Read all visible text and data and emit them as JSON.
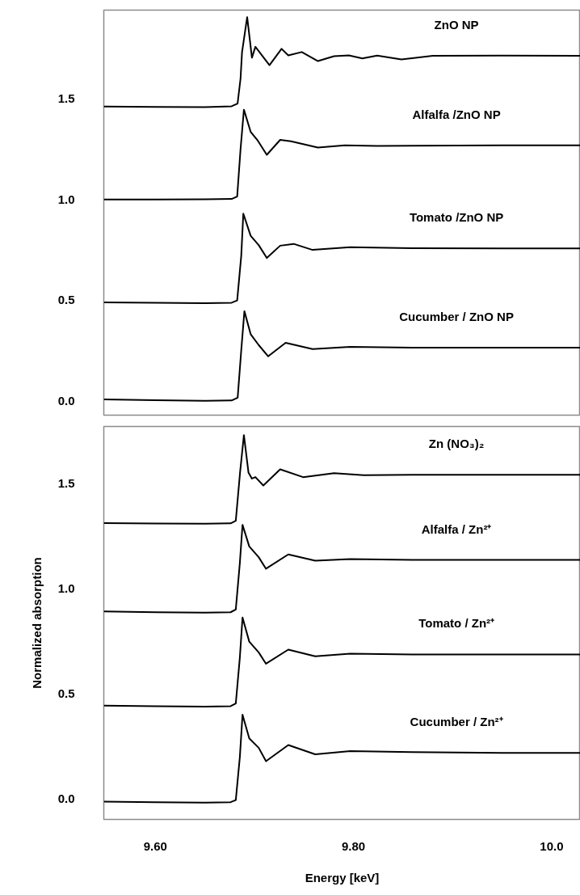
{
  "chart_data": [
    {
      "type": "line",
      "xlim": [
        9.548,
        10.029
      ],
      "ylim": [
        -0.07,
        1.94
      ],
      "yticks": [
        {
          "value": 0,
          "label": "0.0"
        },
        {
          "value": 0.5,
          "label": "0.5"
        },
        {
          "value": 1,
          "label": "1.0"
        },
        {
          "value": 1.5,
          "label": "1.5"
        }
      ],
      "tick_labels": "y",
      "grid": false,
      "series": [
        {
          "name": "ZnO NP",
          "color": "#000000",
          "x": [
            9.548,
            9.6,
            9.65,
            9.677,
            9.683,
            9.686,
            9.6875,
            9.6927,
            9.6975,
            9.701,
            9.7152,
            9.7274,
            9.7342,
            9.7478,
            9.7641,
            9.7804,
            9.7953,
            9.8089,
            9.8239,
            9.8483,
            9.88,
            9.95,
            10.029
          ],
          "values": [
            1.462,
            1.46,
            1.459,
            1.463,
            1.476,
            1.6,
            1.731,
            1.905,
            1.704,
            1.758,
            1.667,
            1.748,
            1.715,
            1.732,
            1.687,
            1.711,
            1.715,
            1.7,
            1.714,
            1.695,
            1.713,
            1.714,
            1.713
          ]
        },
        {
          "name": "Alfalfa /ZnO NP",
          "color": "#000000",
          "x": [
            9.548,
            9.6,
            9.65,
            9.677,
            9.6826,
            9.686,
            9.6894,
            9.6962,
            9.7029,
            9.7125,
            9.726,
            9.7369,
            9.7641,
            9.7913,
            9.8239,
            9.8592,
            9.95,
            10.029
          ],
          "values": [
            1.0,
            1.0,
            1.001,
            1.003,
            1.015,
            1.25,
            1.446,
            1.336,
            1.296,
            1.222,
            1.296,
            1.289,
            1.258,
            1.269,
            1.266,
            1.267,
            1.269,
            1.269
          ]
        },
        {
          "name": "Tomato /ZnO NP",
          "color": "#000000",
          "x": [
            9.548,
            9.6,
            9.65,
            9.677,
            9.6826,
            9.6867,
            9.6888,
            9.6962,
            9.7043,
            9.7125,
            9.726,
            9.7396,
            9.7587,
            9.7967,
            9.8592,
            9.95,
            10.029
          ],
          "values": [
            0.49,
            0.488,
            0.486,
            0.488,
            0.499,
            0.72,
            0.93,
            0.82,
            0.774,
            0.71,
            0.771,
            0.78,
            0.75,
            0.763,
            0.758,
            0.757,
            0.757
          ]
        },
        {
          "name": "Cucumber / ZnO NP",
          "color": "#000000",
          "x": [
            9.548,
            9.6,
            9.65,
            9.677,
            9.6831,
            9.6867,
            9.6899,
            9.6962,
            9.7043,
            9.7138,
            9.7315,
            9.7587,
            9.7967,
            9.8592,
            9.95,
            10.029
          ],
          "values": [
            0.008,
            0.004,
            0.001,
            0.003,
            0.017,
            0.251,
            0.446,
            0.332,
            0.278,
            0.222,
            0.289,
            0.258,
            0.269,
            0.265,
            0.265,
            0.265
          ]
        }
      ]
    },
    {
      "type": "line",
      "xlim": [
        9.548,
        10.029
      ],
      "ylim": [
        -0.1,
        1.77
      ],
      "xticks": [
        {
          "value": 9.6,
          "label": "9.60"
        },
        {
          "value": 9.8,
          "label": "9.80"
        },
        {
          "value": 10.0,
          "label": "10.0"
        }
      ],
      "yticks": [
        {
          "value": 0,
          "label": "0.0"
        },
        {
          "value": 0.5,
          "label": "0.5"
        },
        {
          "value": 1,
          "label": "1.0"
        },
        {
          "value": 1.5,
          "label": "1.5"
        }
      ],
      "xlabel": "Energy [keV]",
      "ylabel": "Normalized absorption",
      "grid": false,
      "series": [
        {
          "name": "Zn (NO₃)₂",
          "color": "#000000",
          "x": [
            9.548,
            9.6,
            9.65,
            9.676,
            9.6812,
            9.6855,
            9.6894,
            9.694,
            9.6975,
            9.701,
            9.709,
            9.726,
            9.7491,
            9.7804,
            9.8103,
            9.8592,
            9.95,
            10.029
          ],
          "values": [
            1.31,
            1.308,
            1.307,
            1.309,
            1.321,
            1.55,
            1.729,
            1.551,
            1.522,
            1.529,
            1.489,
            1.566,
            1.529,
            1.548,
            1.538,
            1.54,
            1.54,
            1.54
          ]
        },
        {
          "name": "Alfalfa / Zn²⁺",
          "color": "#000000",
          "x": [
            9.548,
            9.6,
            9.65,
            9.676,
            9.6812,
            9.6853,
            9.688,
            9.6948,
            9.7043,
            9.7117,
            9.7342,
            9.7614,
            9.7967,
            9.8592,
            9.95,
            10.029
          ],
          "values": [
            0.89,
            0.886,
            0.884,
            0.886,
            0.899,
            1.12,
            1.302,
            1.199,
            1.148,
            1.093,
            1.161,
            1.131,
            1.139,
            1.135,
            1.135,
            1.135
          ]
        },
        {
          "name": "Tomato / Zn²⁺",
          "color": "#000000",
          "x": [
            9.548,
            9.6,
            9.65,
            9.676,
            9.6812,
            9.6853,
            9.688,
            9.6948,
            9.7043,
            9.7117,
            9.7342,
            9.7614,
            9.7967,
            9.8592,
            9.95,
            10.029
          ],
          "values": [
            0.442,
            0.439,
            0.437,
            0.439,
            0.452,
            0.67,
            0.861,
            0.746,
            0.695,
            0.641,
            0.708,
            0.676,
            0.689,
            0.685,
            0.685,
            0.685
          ]
        },
        {
          "name": "Cucumber / Zn²⁺",
          "color": "#000000",
          "x": [
            9.548,
            9.6,
            9.65,
            9.676,
            9.6812,
            9.6853,
            9.688,
            9.6948,
            9.7043,
            9.7117,
            9.7342,
            9.7614,
            9.7967,
            9.8592,
            9.95,
            10.029
          ],
          "values": [
            -0.015,
            -0.018,
            -0.02,
            -0.018,
            -0.008,
            0.197,
            0.398,
            0.286,
            0.241,
            0.177,
            0.254,
            0.21,
            0.225,
            0.22,
            0.216,
            0.216
          ]
        }
      ]
    }
  ]
}
